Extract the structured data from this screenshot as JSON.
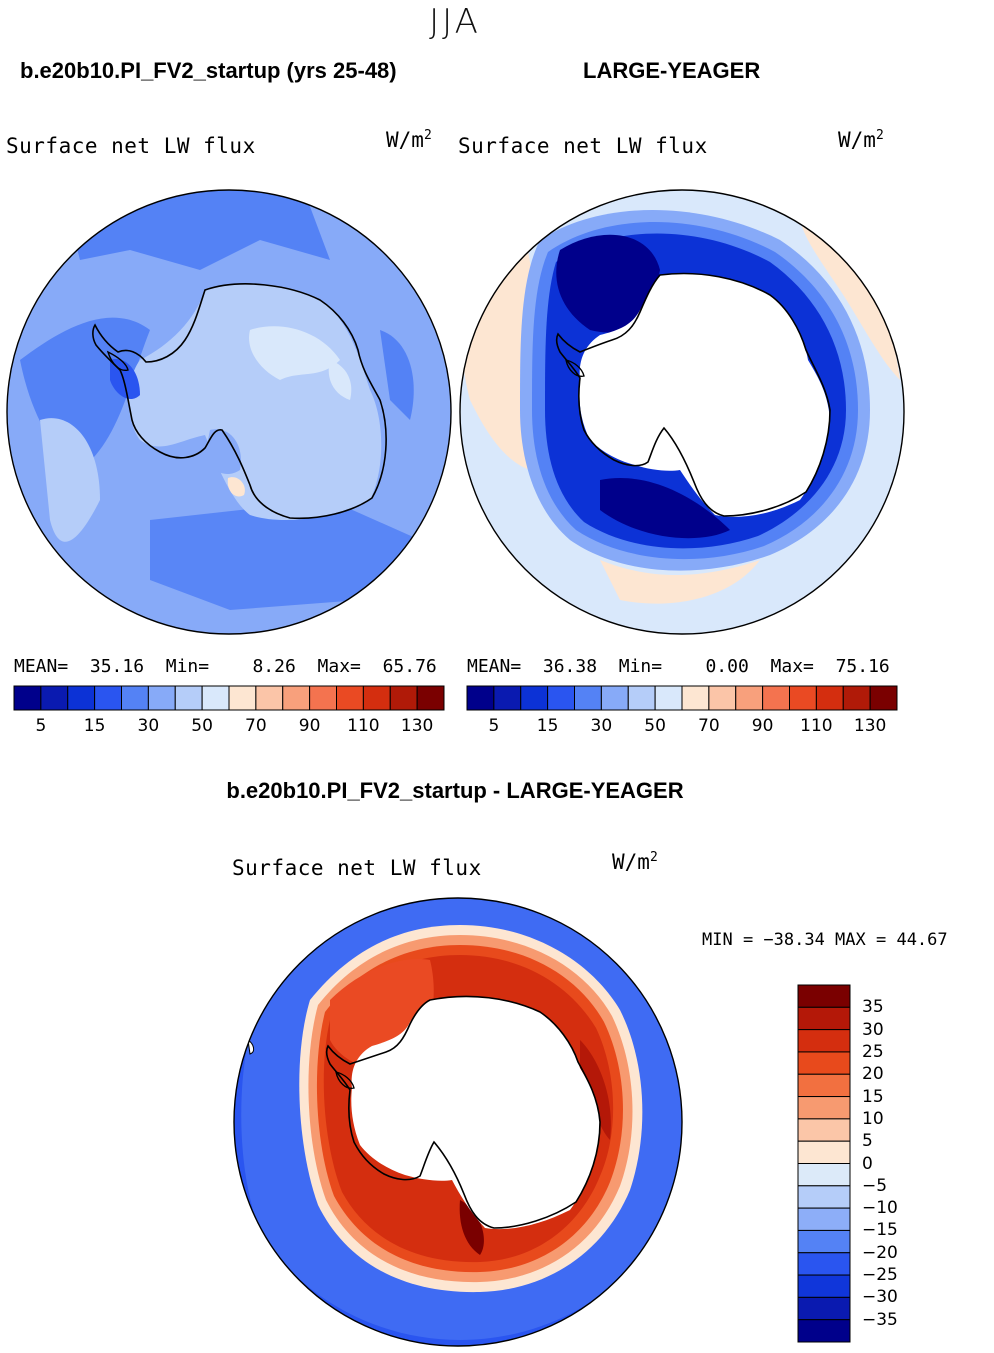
{
  "season": "JJA",
  "panels": [
    {
      "case_title": "b.e20b10.PI_FV2_startup (yrs 25-48)",
      "variable": "Surface net LW flux",
      "units": "W/m",
      "units_sup": "2",
      "stats": {
        "mean_label": "MEAN=",
        "mean": "35.16",
        "min_label": "Min=",
        "min": "8.26",
        "max_label": "Max=",
        "max": "65.76"
      }
    },
    {
      "case_title": "LARGE-YEAGER",
      "variable": "Surface net LW flux",
      "units": "W/m",
      "units_sup": "2",
      "stats": {
        "mean_label": "MEAN=",
        "mean": "36.38",
        "min_label": "Min=",
        "min": "0.00",
        "max_label": "Max=",
        "max": "75.16"
      }
    }
  ],
  "colorbar": {
    "labels": [
      "5",
      "15",
      "30",
      "50",
      "70",
      "90",
      "110",
      "130"
    ],
    "colors": [
      "#00008b",
      "#0a1ab0",
      "#0c32d6",
      "#2a55f0",
      "#5482f5",
      "#87aaf8",
      "#b5cdf9",
      "#d9e8fb",
      "#fde6d2",
      "#fbc5a8",
      "#f8a07c",
      "#f4734f",
      "#ea4a23",
      "#d42e0f",
      "#b01a08",
      "#7a0000"
    ]
  },
  "difference": {
    "title": "b.e20b10.PI_FV2_startup - LARGE-YEAGER",
    "variable": "Surface net LW flux",
    "units": "W/m",
    "units_sup": "2",
    "minmax": "MIN = −38.34 MAX =  44.67",
    "colorbar_labels": [
      "35",
      "30",
      "25",
      "20",
      "15",
      "10",
      "5",
      "0",
      "−5",
      "−10",
      "−15",
      "−20",
      "−25",
      "−30",
      "−35"
    ],
    "colorbar_colors": [
      "#7a0000",
      "#b41808",
      "#d42e0f",
      "#e84a1c",
      "#f27040",
      "#f79a70",
      "#fbc6a8",
      "#fde6d2",
      "#dceaf9",
      "#b5cdf9",
      "#8daef8",
      "#5482f5",
      "#2a55f0",
      "#1036da",
      "#0a1ab0",
      "#00008b"
    ]
  },
  "map_colors": {
    "coastline": "#000000",
    "land": "#ffffff"
  }
}
